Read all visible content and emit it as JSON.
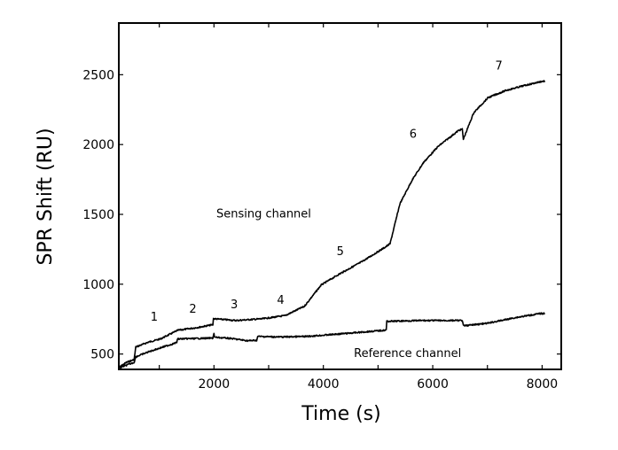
{
  "chart_data": {
    "type": "line",
    "title": "",
    "xlabel": "Time (s)",
    "ylabel": "SPR Shift (RU)",
    "xlim": [
      260,
      8350
    ],
    "ylim": [
      390,
      2870
    ],
    "xticks": [
      1000,
      2000,
      3000,
      4000,
      5000,
      6000,
      7000,
      8000
    ],
    "xtick_labels": [
      {
        "value": 2000,
        "label": "2000"
      },
      {
        "value": 4000,
        "label": "4000"
      },
      {
        "value": 6000,
        "label": "6000"
      },
      {
        "value": 8000,
        "label": "8000"
      }
    ],
    "yticks": [
      {
        "value": 500,
        "label": "500"
      },
      {
        "value": 1000,
        "label": "1000"
      },
      {
        "value": 1500,
        "label": "1500"
      },
      {
        "value": 2000,
        "label": "2000"
      },
      {
        "value": 2500,
        "label": "2500"
      }
    ],
    "grid": false,
    "series": [
      {
        "name": "Sensing channel",
        "x": [
          265,
          400,
          540,
          570,
          800,
          1020,
          1340,
          1700,
          1980,
          1990,
          2400,
          2900,
          3300,
          3590,
          3650,
          3960,
          4280,
          4700,
          5150,
          5220,
          5400,
          5625,
          5835,
          6100,
          6470,
          6540,
          6560,
          6750,
          7010,
          7330,
          7650,
          7970,
          8050
        ],
        "y": [
          405,
          440,
          460,
          550,
          585,
          608,
          670,
          690,
          710,
          753,
          740,
          753,
          775,
          830,
          840,
          994,
          1070,
          1160,
          1270,
          1290,
          1576,
          1747,
          1873,
          1987,
          2100,
          2110,
          2038,
          2228,
          2335,
          2386,
          2420,
          2450,
          2455
        ]
      },
      {
        "name": "Reference channel",
        "x": [
          265,
          400,
          540,
          570,
          800,
          1020,
          1320,
          1330,
          1980,
          2000,
          2010,
          2300,
          2620,
          2780,
          2800,
          3200,
          3700,
          4500,
          5110,
          5150,
          5160,
          5800,
          6540,
          6560,
          7000,
          7500,
          7970,
          8050
        ],
        "y": [
          400,
          420,
          440,
          480,
          515,
          544,
          582,
          608,
          614,
          650,
          620,
          612,
          595,
          598,
          626,
          622,
          626,
          650,
          670,
          672,
          734,
          740,
          740,
          702,
          720,
          760,
          790,
          790
        ]
      }
    ],
    "annotations": [
      {
        "text": "1",
        "x": 907,
        "y": 772
      },
      {
        "text": "2",
        "x": 1613,
        "y": 829
      },
      {
        "text": "3",
        "x": 2370,
        "y": 860
      },
      {
        "text": "4",
        "x": 3220,
        "y": 890
      },
      {
        "text": "5",
        "x": 4310,
        "y": 1240
      },
      {
        "text": "6",
        "x": 5640,
        "y": 2080
      },
      {
        "text": "7",
        "x": 7210,
        "y": 2570
      },
      {
        "text": "Sensing channel",
        "x": 2910,
        "y": 1510
      },
      {
        "text": "Reference channel",
        "x": 5540,
        "y": 510
      }
    ]
  }
}
